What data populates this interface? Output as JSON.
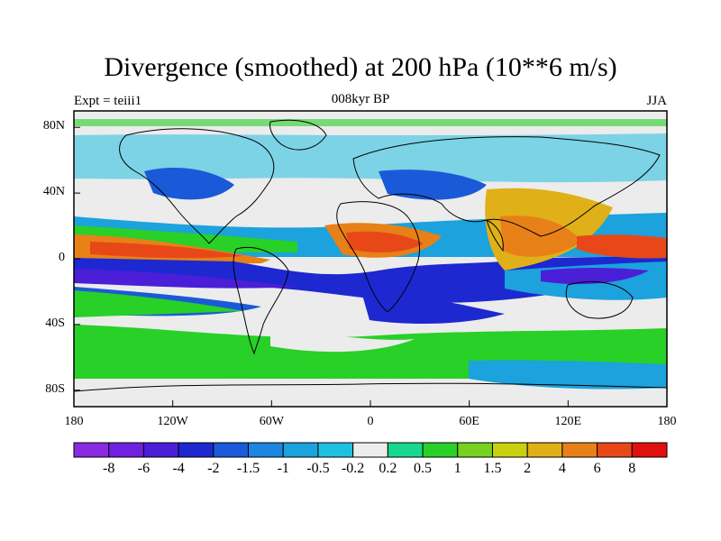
{
  "title": "Divergence (smoothed) at 200 hPa (10**6 m/s)",
  "left_label": "Expt = teiii1",
  "center_label": "008kyr BP",
  "right_label": "JJA",
  "y_ticks": [
    "80N",
    "40N",
    "0",
    "40S",
    "80S"
  ],
  "y_tick_lats": [
    80,
    40,
    0,
    -40,
    -80
  ],
  "x_ticks": [
    "180",
    "120W",
    "60W",
    "0",
    "60E",
    "120E",
    "180"
  ],
  "x_tick_lons": [
    -180,
    -120,
    -60,
    0,
    60,
    120,
    180
  ],
  "colorbar": {
    "labels": [
      "-8",
      "-6",
      "-4",
      "-2",
      "-1.5",
      "-1",
      "-0.5",
      "-0.2",
      "0.2",
      "0.5",
      "1",
      "1.5",
      "2",
      "4",
      "6",
      "8"
    ],
    "colors": [
      "#8a2be2",
      "#7020e0",
      "#4b1ed8",
      "#1e28d0",
      "#1a5ad8",
      "#1c86e0",
      "#1ca2dc",
      "#20c0e0",
      "#ececec",
      "#18d890",
      "#28d028",
      "#78d020",
      "#c8d010",
      "#e0b018",
      "#e88018",
      "#e84818",
      "#e01010"
    ]
  },
  "map": {
    "lon_range": [
      -180,
      180
    ],
    "lat_range": [
      -90,
      90
    ],
    "projection": "cylindrical equidistant",
    "contour_fill": "filled"
  }
}
